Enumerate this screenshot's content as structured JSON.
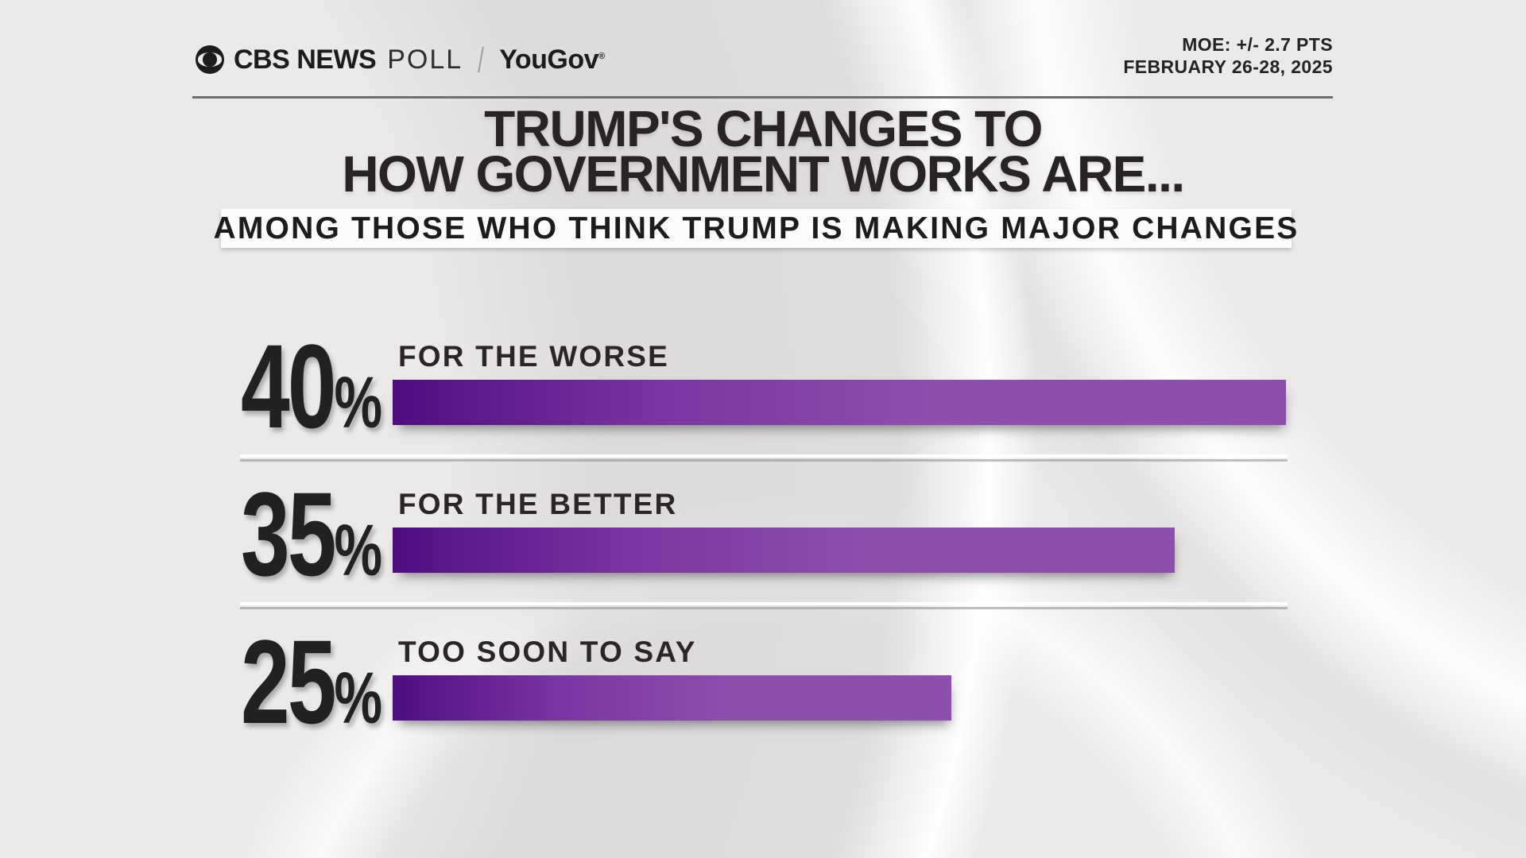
{
  "brand": {
    "cbs": "CBS NEWS",
    "poll": "POLL",
    "partner": "YouGov",
    "registered": "®"
  },
  "meta": {
    "moe": "MOE: +/- 2.7 PTS",
    "date": "FEBRUARY 26-28, 2025"
  },
  "title": {
    "line1": "TRUMP'S CHANGES TO",
    "line2": "HOW GOVERNMENT WORKS ARE..."
  },
  "subtitle": "AMONG THOSE WHO THINK TRUMP IS MAKING MAJOR CHANGES",
  "chart_data": {
    "type": "bar",
    "orientation": "horizontal",
    "title": "TRUMP'S CHANGES TO HOW GOVERNMENT WORKS ARE...",
    "subtitle": "AMONG THOSE WHO THINK TRUMP IS MAKING MAJOR CHANGES",
    "categories": [
      "FOR THE WORSE",
      "FOR THE BETTER",
      "TOO SOON TO SAY"
    ],
    "values": [
      40,
      35,
      25
    ],
    "value_suffix": "%",
    "xlim": [
      0,
      40
    ],
    "grid": false,
    "legend": false,
    "colors": {
      "bar_gradient_from": "#4f0e80",
      "bar_gradient_mid": "#7a35a0",
      "bar_gradient_to": "#8d4fae",
      "value_label": "#232021",
      "category_label": "#2a2627",
      "background": "#ebeae9"
    }
  }
}
